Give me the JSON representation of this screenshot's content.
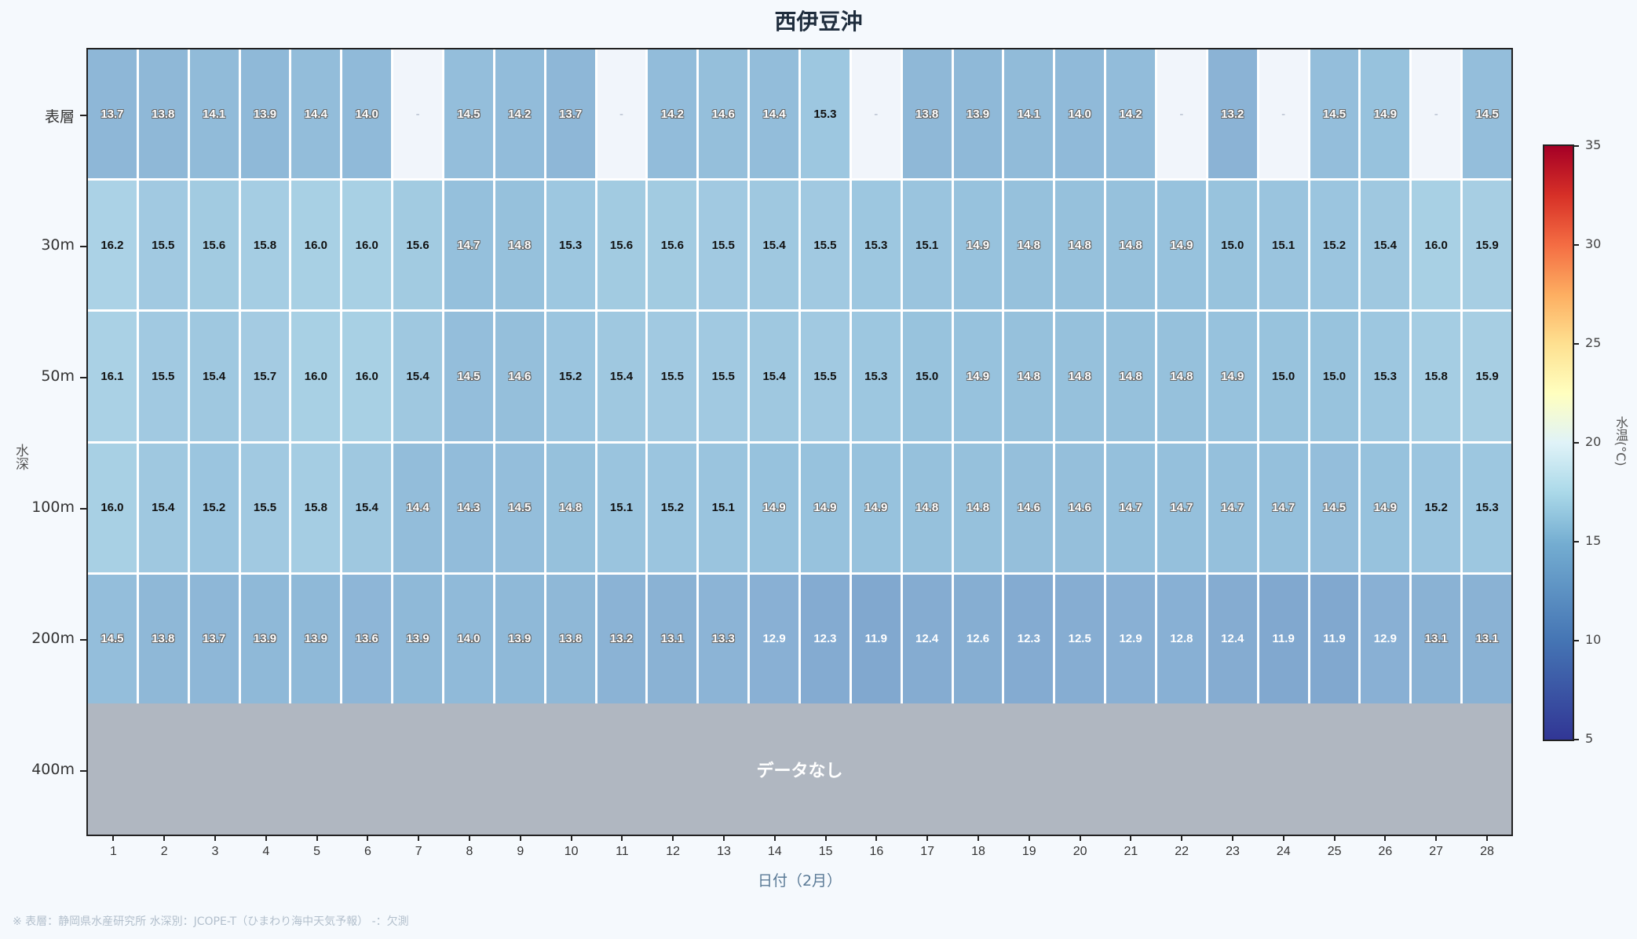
{
  "title": "西伊豆沖",
  "xlabel": "日付（2月）",
  "ylabel": "水深",
  "colorbar_label": "水温(°C)",
  "no_data_label": "データなし",
  "footer": "※ 表層：静岡県水産研究所  水深別：JCOPE-T（ひまわり海中天気予報）  -：欠測",
  "missing_symbol": "-",
  "depths": [
    "表層",
    "30m",
    "50m",
    "100m",
    "200m",
    "400m"
  ],
  "days": [
    "1",
    "2",
    "3",
    "4",
    "5",
    "6",
    "7",
    "8",
    "9",
    "10",
    "11",
    "12",
    "13",
    "14",
    "15",
    "16",
    "17",
    "18",
    "19",
    "20",
    "21",
    "22",
    "23",
    "24",
    "25",
    "26",
    "27",
    "28"
  ],
  "colorbar_ticks": [
    "35",
    "30",
    "25",
    "20",
    "15",
    "10",
    "5"
  ],
  "chart_data": {
    "type": "heatmap",
    "title": "西伊豆沖",
    "xlabel": "日付（2月）",
    "ylabel": "水深",
    "colorbar": {
      "label": "水温(°C)",
      "range": [
        5,
        35
      ],
      "colormap": "RdYlBu_r"
    },
    "x": [
      1,
      2,
      3,
      4,
      5,
      6,
      7,
      8,
      9,
      10,
      11,
      12,
      13,
      14,
      15,
      16,
      17,
      18,
      19,
      20,
      21,
      22,
      23,
      24,
      25,
      26,
      27,
      28
    ],
    "y": [
      "表層",
      "30m",
      "50m",
      "100m",
      "200m",
      "400m"
    ],
    "values": {
      "表層": [
        13.7,
        13.8,
        14.1,
        13.9,
        14.4,
        14.0,
        null,
        14.5,
        14.2,
        13.7,
        null,
        14.2,
        14.6,
        14.4,
        15.3,
        null,
        13.8,
        13.9,
        14.1,
        14.0,
        14.2,
        null,
        13.2,
        null,
        14.5,
        14.9,
        null,
        14.5
      ],
      "30m": [
        16.2,
        15.5,
        15.6,
        15.8,
        16.0,
        16.0,
        15.6,
        14.7,
        14.8,
        15.3,
        15.6,
        15.6,
        15.5,
        15.4,
        15.5,
        15.3,
        15.1,
        14.9,
        14.8,
        14.8,
        14.8,
        14.9,
        15.0,
        15.1,
        15.2,
        15.4,
        16.0,
        15.9
      ],
      "50m": [
        16.1,
        15.5,
        15.4,
        15.7,
        16.0,
        16.0,
        15.4,
        14.5,
        14.6,
        15.2,
        15.4,
        15.5,
        15.5,
        15.4,
        15.5,
        15.3,
        15.0,
        14.9,
        14.8,
        14.8,
        14.8,
        14.8,
        14.9,
        15.0,
        15.0,
        15.3,
        15.8,
        15.9
      ],
      "100m": [
        16.0,
        15.4,
        15.2,
        15.5,
        15.8,
        15.4,
        14.4,
        14.3,
        14.5,
        14.8,
        15.1,
        15.2,
        15.1,
        14.9,
        14.9,
        14.9,
        14.8,
        14.8,
        14.6,
        14.6,
        14.7,
        14.7,
        14.7,
        14.7,
        14.5,
        14.9,
        15.2,
        15.3
      ],
      "200m": [
        14.5,
        13.8,
        13.7,
        13.9,
        13.9,
        13.6,
        13.9,
        14.0,
        13.9,
        13.8,
        13.2,
        13.1,
        13.3,
        12.9,
        12.3,
        11.9,
        12.4,
        12.6,
        12.3,
        12.5,
        12.9,
        12.8,
        12.4,
        11.9,
        11.9,
        12.9,
        13.1,
        13.1
      ],
      "400m": null
    },
    "notes": "400m: データなし; '-' = 欠測"
  }
}
